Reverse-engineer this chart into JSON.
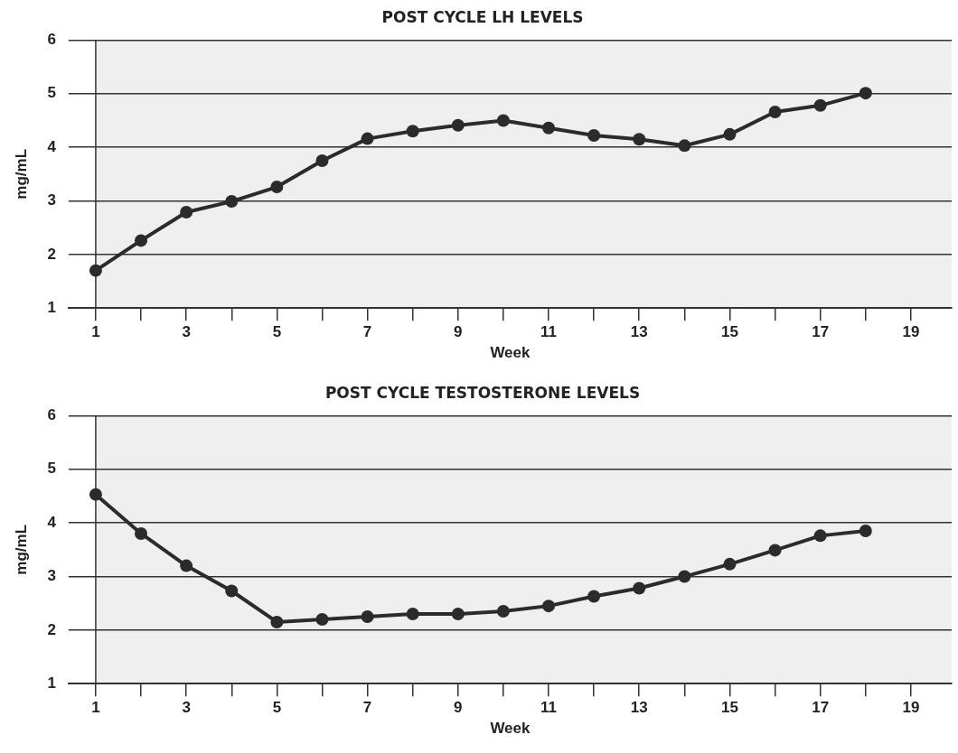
{
  "chart_data": [
    {
      "type": "line",
      "title": "POST CYCLE LH LEVELS",
      "xlabel": "Week",
      "ylabel": "mg/mL",
      "x": [
        1,
        2,
        3,
        4,
        5,
        6,
        7,
        8,
        9,
        10,
        11,
        12,
        13,
        14,
        15,
        16,
        17,
        18
      ],
      "series": [
        {
          "color": "#2b2b2b",
          "values": [
            1.7,
            2.26,
            2.79,
            2.99,
            3.26,
            3.75,
            4.16,
            4.3,
            4.41,
            4.5,
            4.36,
            4.22,
            4.15,
            4.03,
            4.24,
            4.66,
            4.78,
            5.01
          ]
        }
      ],
      "xlim": [
        0.4,
        19.9
      ],
      "xticks": [
        1,
        {
          "value": 2,
          "label": null
        },
        3,
        {
          "value": 4,
          "label": null
        },
        5,
        {
          "value": 6,
          "label": null
        },
        7,
        {
          "value": 8,
          "label": null
        },
        9,
        {
          "value": 10,
          "label": null
        },
        11,
        {
          "value": 12,
          "label": null
        },
        13,
        {
          "value": 14,
          "label": null
        },
        15,
        {
          "value": 16,
          "label": null
        },
        17,
        {
          "value": 18,
          "label": null
        },
        19
      ],
      "ylim": [
        1,
        6
      ],
      "yticks": [
        1,
        2,
        3,
        4,
        5,
        6
      ],
      "grid": "y",
      "legend": false,
      "marker": "circle",
      "line_style": "solid"
    },
    {
      "type": "line",
      "title": "POST CYCLE TESTOSTERONE LEVELS",
      "xlabel": "Week",
      "ylabel": "mg/mL",
      "x": [
        1,
        2,
        3,
        4,
        5,
        6,
        7,
        8,
        9,
        10,
        11,
        12,
        13,
        14,
        15,
        16,
        17,
        18
      ],
      "series": [
        {
          "color": "#2b2b2b",
          "values": [
            4.53,
            3.8,
            3.2,
            2.73,
            2.15,
            2.2,
            2.25,
            2.3,
            2.3,
            2.35,
            2.45,
            2.63,
            2.78,
            3.0,
            3.23,
            3.49,
            3.76,
            3.85
          ]
        }
      ],
      "xlim": [
        0.4,
        19.9
      ],
      "xticks": [
        1,
        {
          "value": 2,
          "label": null
        },
        3,
        {
          "value": 4,
          "label": null
        },
        5,
        {
          "value": 6,
          "label": null
        },
        7,
        {
          "value": 8,
          "label": null
        },
        9,
        {
          "value": 10,
          "label": null
        },
        11,
        {
          "value": 12,
          "label": null
        },
        13,
        {
          "value": 14,
          "label": null
        },
        15,
        {
          "value": 16,
          "label": null
        },
        17,
        {
          "value": 18,
          "label": null
        },
        19
      ],
      "ylim": [
        1,
        6
      ],
      "yticks": [
        1,
        2,
        3,
        4,
        5,
        6
      ],
      "grid": "y",
      "legend": false,
      "marker": "circle",
      "line_style": "solid"
    }
  ]
}
